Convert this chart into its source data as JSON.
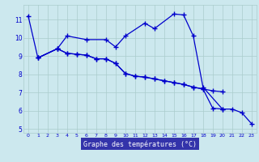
{
  "title": "Graphe des températures (°C)",
  "bg_color": "#cce8ee",
  "grid_color": "#aacccc",
  "line_color": "#0000cc",
  "series": {
    "s1_x": [
      0,
      1,
      3,
      4,
      6,
      8,
      9,
      10,
      12,
      13,
      15,
      16,
      17,
      18,
      20
    ],
    "s1_y": [
      11.2,
      8.9,
      9.4,
      10.1,
      9.9,
      9.9,
      9.5,
      10.1,
      10.8,
      10.5,
      11.3,
      11.25,
      10.1,
      7.3,
      6.1
    ],
    "s2_x": [
      1,
      3,
      4,
      5,
      6,
      7,
      8,
      9,
      10,
      11,
      12,
      13,
      14,
      15,
      16,
      17,
      18,
      19,
      20
    ],
    "s2_y": [
      8.9,
      9.4,
      9.15,
      9.1,
      9.05,
      8.85,
      8.85,
      8.6,
      8.05,
      7.9,
      7.85,
      7.75,
      7.65,
      7.55,
      7.45,
      7.3,
      7.2,
      7.1,
      7.05
    ],
    "s3_x": [
      1,
      3,
      4,
      5,
      6,
      7,
      8,
      9,
      10,
      11,
      12,
      13,
      14,
      15,
      16,
      17,
      18,
      19,
      20,
      21,
      22,
      23
    ],
    "s3_y": [
      8.9,
      9.4,
      9.15,
      9.1,
      9.05,
      8.85,
      8.85,
      8.6,
      8.05,
      7.9,
      7.85,
      7.75,
      7.65,
      7.55,
      7.45,
      7.3,
      7.2,
      6.15,
      6.1,
      6.1,
      5.9,
      5.3
    ]
  },
  "ylim": [
    4.8,
    11.8
  ],
  "yticks": [
    5,
    6,
    7,
    8,
    9,
    10,
    11
  ],
  "xlim": [
    -0.5,
    23.5
  ],
  "xticks": [
    0,
    1,
    2,
    3,
    4,
    5,
    6,
    7,
    8,
    9,
    10,
    11,
    12,
    13,
    14,
    15,
    16,
    17,
    18,
    19,
    20,
    21,
    22,
    23
  ],
  "xlabel_bg": "#3333aa",
  "xlabel_fg": "#ffffff"
}
